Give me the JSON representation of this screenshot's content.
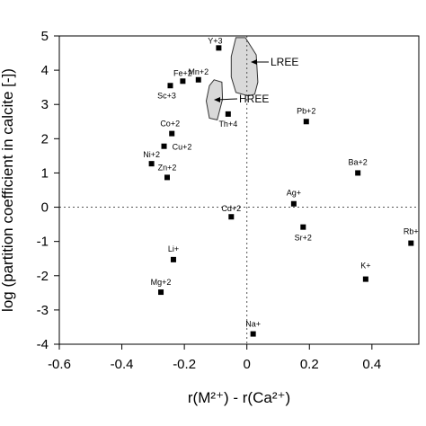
{
  "chart_data": {
    "type": "scatter",
    "xlabel": "r(M²⁺) - r(Ca²⁺)",
    "ylabel": "log (partition coefficient in calcite [-])",
    "xlim": [
      -0.6,
      0.55
    ],
    "ylim": [
      -4,
      5
    ],
    "xticks": [
      "-0.6",
      "-0.4",
      "-0.2",
      "0",
      "0.2",
      "0.4"
    ],
    "xtick_values": [
      -0.6,
      -0.4,
      -0.2,
      0,
      0.2,
      0.4
    ],
    "yticks": [
      "-4",
      "-3",
      "-2",
      "-1",
      "0",
      "1",
      "2",
      "3",
      "4",
      "5"
    ],
    "ytick_values": [
      -4,
      -3,
      -2,
      -1,
      0,
      1,
      2,
      3,
      4,
      5
    ],
    "reference_lines": {
      "x": 0,
      "y": 0,
      "style": "dotted"
    },
    "grid": false,
    "marker": "square",
    "points": [
      {
        "label": "Y+3",
        "x": -0.09,
        "y": 4.65
      },
      {
        "label": "Fe+2",
        "x": -0.205,
        "y": 3.68
      },
      {
        "label": "Mn+2",
        "x": -0.155,
        "y": 3.72
      },
      {
        "label": "Sc+3",
        "x": -0.245,
        "y": 3.55
      },
      {
        "label": "Th+4",
        "x": -0.06,
        "y": 2.72
      },
      {
        "label": "Pb+2",
        "x": 0.19,
        "y": 2.5
      },
      {
        "label": "Co+2",
        "x": -0.24,
        "y": 2.15
      },
      {
        "label": "Cu+2",
        "x": -0.265,
        "y": 1.78
      },
      {
        "label": "Ni+2",
        "x": -0.305,
        "y": 1.27
      },
      {
        "label": "Ba+2",
        "x": 0.355,
        "y": 1.0
      },
      {
        "label": "Zn+2",
        "x": -0.255,
        "y": 0.87
      },
      {
        "label": "Ag+",
        "x": 0.15,
        "y": 0.1
      },
      {
        "label": "Cd+2",
        "x": -0.05,
        "y": -0.28
      },
      {
        "label": "Sr+2",
        "x": 0.18,
        "y": -0.58
      },
      {
        "label": "Rb+",
        "x": 0.525,
        "y": -1.05
      },
      {
        "label": "Li+",
        "x": -0.235,
        "y": -1.53
      },
      {
        "label": "K+",
        "x": 0.38,
        "y": -2.1
      },
      {
        "label": "Mg+2",
        "x": -0.275,
        "y": -2.48
      },
      {
        "label": "Na+",
        "x": 0.02,
        "y": -3.7
      }
    ],
    "regions": [
      {
        "label": "LREE",
        "x": [
          -0.035,
          -0.005,
          0.03,
          0.035,
          0.025,
          0.005,
          -0.035,
          -0.05,
          -0.05
        ],
        "y": [
          4.95,
          4.95,
          4.45,
          3.65,
          3.3,
          3.25,
          3.35,
          3.8,
          4.4
        ]
      },
      {
        "label": "HREE",
        "x": [
          -0.12,
          -0.105,
          -0.08,
          -0.078,
          -0.095,
          -0.12,
          -0.13
        ],
        "y": [
          3.55,
          3.72,
          3.65,
          3.15,
          2.55,
          2.6,
          3.1
        ]
      }
    ]
  }
}
